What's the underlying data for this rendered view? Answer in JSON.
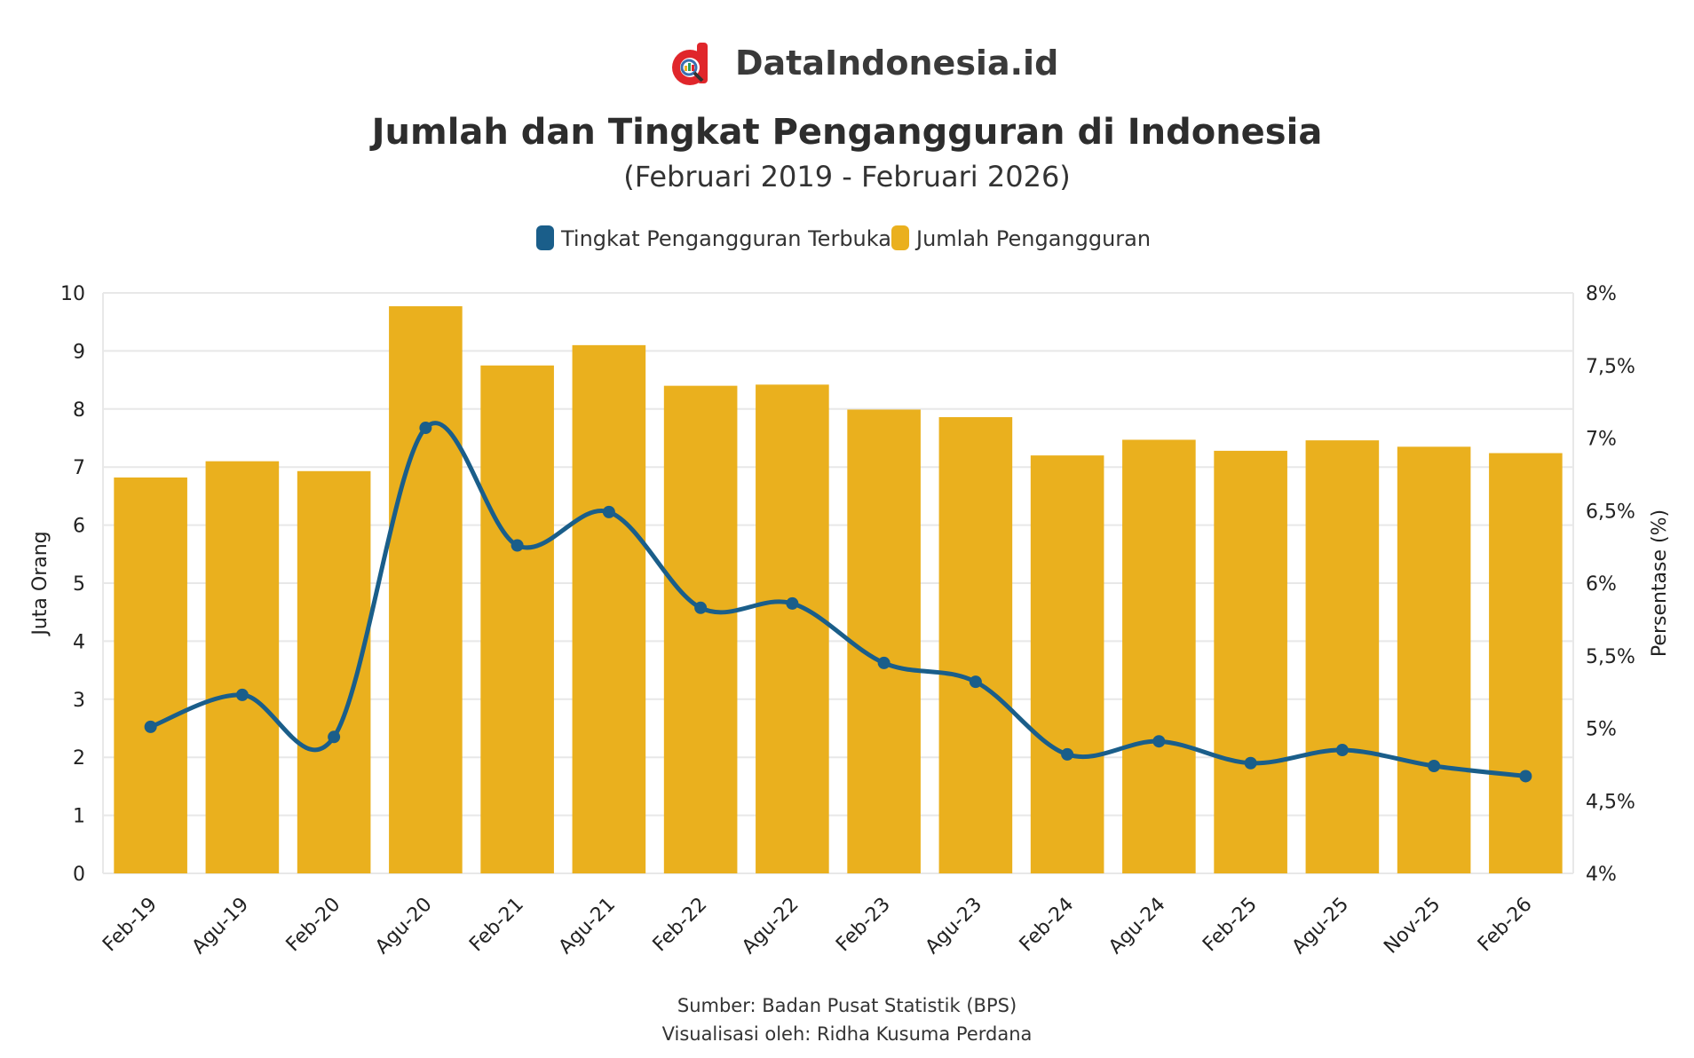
{
  "brand": {
    "name": "DataIndonesia.id",
    "logo_icon": "dataindonesia-logo-icon",
    "logo_color": "#e0262b"
  },
  "header": {
    "title": "Jumlah dan Tingkat Pengangguran di Indonesia",
    "subtitle": "(Februari 2019 - Februari 2026)"
  },
  "legend": {
    "items": [
      {
        "label": "Tingkat Pengangguran Terbuka",
        "color": "#1a5e8a"
      },
      {
        "label": "Jumlah Pengangguran",
        "color": "#eab01e"
      }
    ]
  },
  "footer": {
    "source": "Sumber: Badan Pusat Statistik (BPS)",
    "credit": "Visualisasi oleh: Ridha Kusuma Perdana"
  },
  "chart_data": {
    "type": "bar",
    "categories": [
      "Feb-19",
      "Agu-19",
      "Feb-20",
      "Agu-20",
      "Feb-21",
      "Agu-21",
      "Feb-22",
      "Agu-22",
      "Feb-23",
      "Agu-23",
      "Feb-24",
      "Agu-24",
      "Feb-25",
      "Agu-25",
      "Nov-25",
      "Feb-26"
    ],
    "series": [
      {
        "name": "Jumlah Pengangguran",
        "type": "bar",
        "axis": "left",
        "color": "#eab01e",
        "values": [
          6.82,
          7.1,
          6.93,
          9.77,
          8.75,
          9.1,
          8.4,
          8.42,
          7.99,
          7.86,
          7.2,
          7.47,
          7.28,
          7.46,
          7.35,
          7.24
        ]
      },
      {
        "name": "Tingkat Pengangguran Terbuka",
        "type": "line",
        "axis": "right",
        "color": "#1a5e8a",
        "values": [
          5.01,
          5.23,
          4.94,
          7.07,
          6.26,
          6.49,
          5.83,
          5.86,
          5.45,
          5.32,
          4.82,
          4.91,
          4.76,
          4.85,
          4.74,
          4.67
        ]
      }
    ],
    "ylabel": "Juta Orang",
    "ylabel_right": "Persentase (%)",
    "ylim": [
      0,
      10
    ],
    "ylim_right": [
      4,
      8
    ],
    "yticks": [
      "0",
      "1",
      "2",
      "3",
      "4",
      "5",
      "6",
      "7",
      "8",
      "9",
      "10"
    ],
    "yticks_right": [
      "4%",
      "4,5%",
      "5%",
      "5,5%",
      "6%",
      "6,5%",
      "7%",
      "7,5%",
      "8%"
    ],
    "grid": true,
    "legend_position": "top-center"
  }
}
